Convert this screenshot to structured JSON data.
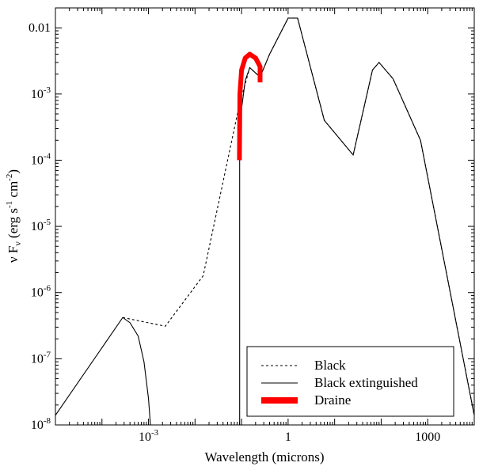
{
  "chart_data": {
    "type": "line",
    "xlabel": "Wavelength (microns)",
    "ylabel": {
      "parts": [
        {
          "t": "ν F",
          "sub": false,
          "sup": false
        },
        {
          "t": "ν",
          "sub": true,
          "sup": false
        },
        {
          "t": " (erg s",
          "sub": false,
          "sup": false
        },
        {
          "t": "-1",
          "sub": false,
          "sup": true
        },
        {
          "t": " cm",
          "sub": false,
          "sup": false
        },
        {
          "t": "-2",
          "sub": false,
          "sup": true
        },
        {
          "t": ")",
          "sub": false,
          "sup": false
        }
      ]
    },
    "xscale": "log",
    "yscale": "log",
    "xlim": [
      1e-05,
      10000
    ],
    "ylim": [
      1e-08,
      0.02
    ],
    "xticks": [
      {
        "value": 0.001,
        "base": "10",
        "exp": "-3"
      },
      {
        "value": 1,
        "base": "1",
        "exp": ""
      },
      {
        "value": 1000,
        "base": "1000",
        "exp": ""
      }
    ],
    "yticks": [
      {
        "value": 1e-08,
        "base": "10",
        "exp": "-8"
      },
      {
        "value": 1e-07,
        "base": "10",
        "exp": "-7"
      },
      {
        "value": 1e-06,
        "base": "10",
        "exp": "-6"
      },
      {
        "value": 1e-05,
        "base": "10",
        "exp": "-5"
      },
      {
        "value": 0.0001,
        "base": "10",
        "exp": "-4"
      },
      {
        "value": 0.001,
        "base": "10",
        "exp": "-3"
      },
      {
        "value": 0.01,
        "base": "0.01",
        "exp": ""
      }
    ],
    "legend_position": "bottom-right",
    "series": [
      {
        "name": "Black",
        "style": "dashed",
        "color": "#000000",
        "points": [
          [
            0.00028,
            4.2e-07
          ],
          [
            0.0023,
            3.1e-07
          ],
          [
            0.015,
            1.8e-06
          ],
          [
            0.09,
            0.0007
          ],
          [
            0.15,
            0.0025
          ],
          [
            0.25,
            0.0018
          ],
          [
            0.4,
            0.004
          ],
          [
            1,
            0.014
          ],
          [
            1.6,
            0.014
          ],
          [
            6,
            0.0004
          ],
          [
            25,
            0.00012
          ],
          [
            65,
            0.0023
          ],
          [
            90,
            0.003
          ],
          [
            180,
            0.0017
          ],
          [
            700,
            0.0002
          ],
          [
            10000,
            1.4e-08
          ]
        ]
      },
      {
        "name": "Black extinguished",
        "style": "solid",
        "color": "#000000",
        "points": [
          [
            1e-05,
            1.4e-08
          ],
          [
            0.00028,
            4.2e-07
          ],
          [
            0.0004,
            3.5e-07
          ],
          [
            0.0006,
            2.2e-07
          ],
          [
            0.0008,
            9e-08
          ],
          [
            0.001,
            2.5e-08
          ],
          [
            0.0011,
            1e-08
          ],
          null,
          [
            0.091,
            1e-08
          ],
          [
            0.091,
            0.0002
          ],
          [
            0.1,
            0.0006
          ],
          [
            0.12,
            0.0016
          ],
          [
            0.15,
            0.0025
          ],
          [
            0.25,
            0.0018
          ],
          [
            0.4,
            0.004
          ],
          [
            1,
            0.014
          ],
          [
            1.6,
            0.014
          ],
          [
            6,
            0.0004
          ],
          [
            25,
            0.00012
          ],
          [
            65,
            0.0023
          ],
          [
            90,
            0.003
          ],
          [
            180,
            0.0017
          ],
          [
            700,
            0.0002
          ],
          [
            10000,
            1.4e-08
          ]
        ]
      },
      {
        "name": "Draine",
        "style": "thick",
        "color": "#ff0000",
        "points": [
          [
            0.09,
            0.0001
          ],
          [
            0.092,
            0.001
          ],
          [
            0.1,
            0.0023
          ],
          [
            0.12,
            0.0035
          ],
          [
            0.15,
            0.004
          ],
          [
            0.2,
            0.0035
          ],
          [
            0.25,
            0.0026
          ],
          [
            0.25,
            0.0015
          ]
        ]
      }
    ]
  }
}
